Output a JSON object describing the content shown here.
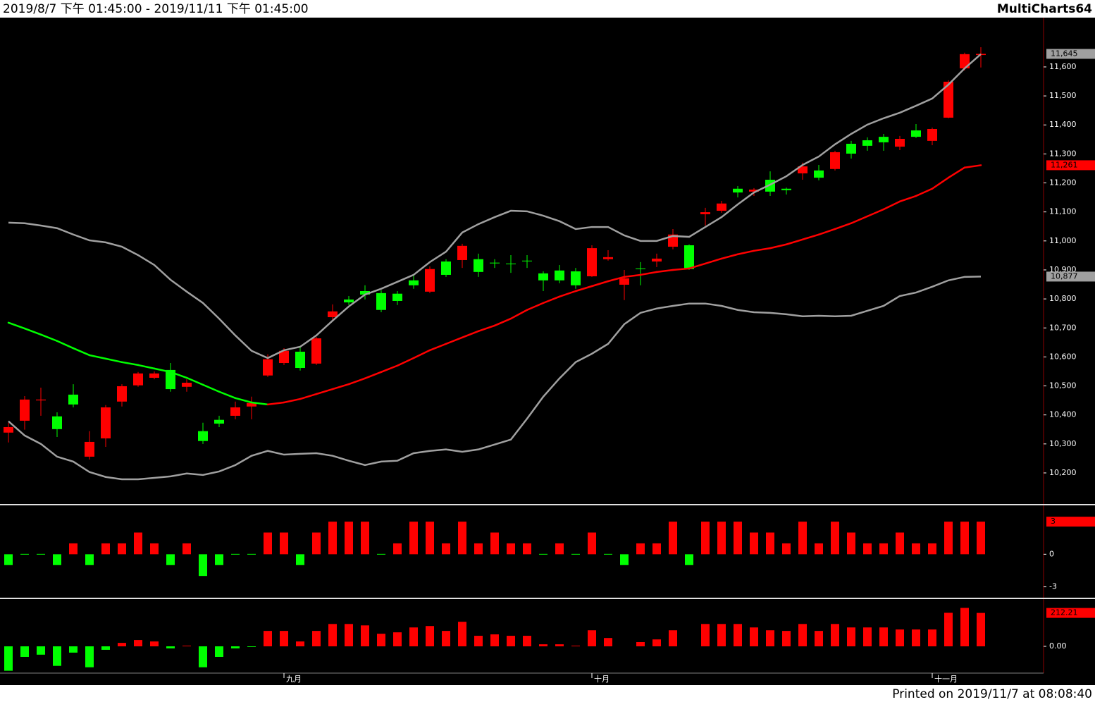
{
  "header": {
    "range": "2019/8/7 下午 01:45:00 - 2019/11/11 下午 01:45:00",
    "app": "MultiCharts64"
  },
  "footer": {
    "printed": "Printed on 2019/11/7 at 08:08:40"
  },
  "chart_data": [
    {
      "type": "candlestick",
      "up_color": "#ff0000",
      "down_color": "#00ff00",
      "categories": [
        null,
        null,
        null,
        null,
        null,
        null,
        null,
        null,
        null,
        null,
        null,
        null,
        null,
        null,
        null,
        null,
        null,
        "九月",
        null,
        null,
        null,
        null,
        null,
        null,
        null,
        null,
        null,
        null,
        null,
        null,
        null,
        null,
        null,
        null,
        null,
        null,
        "十月",
        null,
        null,
        null,
        null,
        null,
        null,
        null,
        null,
        null,
        null,
        null,
        null,
        null,
        null,
        null,
        null,
        null,
        null,
        null,
        null,
        "十一月",
        null,
        null,
        null
      ],
      "open": [
        10339,
        10380,
        10450,
        10395,
        10470,
        10256,
        10319,
        10446,
        10502,
        10528,
        10555,
        10497,
        10344,
        10383,
        10397,
        10429,
        10536,
        10579,
        10618,
        10577,
        10737,
        10798,
        10827,
        10820,
        10818,
        10864,
        10825,
        10929,
        10934,
        10937,
        10925,
        10922,
        10932,
        10888,
        10898,
        10895,
        10878,
        10937,
        10849,
        10905,
        10929,
        10980,
        10985,
        11092,
        11104,
        11180,
        11170,
        11211,
        11180,
        11233,
        11243,
        11248,
        11335,
        11347,
        11359,
        11325,
        11381,
        11345,
        11425,
        11595,
        11641
      ],
      "high": [
        10373,
        10465,
        10494,
        10409,
        10506,
        10344,
        10434,
        10506,
        10548,
        10550,
        10579,
        10523,
        10373,
        10397,
        10446,
        10463,
        10609,
        10630,
        10633,
        10669,
        10781,
        10810,
        10847,
        10830,
        10827,
        10883,
        10912,
        10937,
        10990,
        10956,
        10937,
        10951,
        10951,
        10895,
        10917,
        10907,
        10985,
        10968,
        10900,
        10927,
        10956,
        11041,
        10988,
        11114,
        11138,
        11189,
        11182,
        11240,
        11184,
        11270,
        11262,
        11311,
        11345,
        11357,
        11369,
        11362,
        11403,
        11391,
        11554,
        11649,
        11668
      ],
      "low": [
        10305,
        10349,
        10397,
        10324,
        10426,
        10246,
        10290,
        10429,
        10497,
        10523,
        10480,
        10480,
        10300,
        10358,
        10385,
        10385,
        10531,
        10572,
        10553,
        10572,
        10725,
        10779,
        10798,
        10754,
        10779,
        10835,
        10820,
        10876,
        10907,
        10876,
        10907,
        10890,
        10907,
        10827,
        10854,
        10835,
        10876,
        10932,
        10796,
        10847,
        10910,
        10971,
        10900,
        11053,
        11097,
        11150,
        11155,
        11155,
        11160,
        11211,
        11209,
        11243,
        11284,
        11311,
        11311,
        11313,
        11355,
        11330,
        11423,
        11588,
        11598
      ],
      "close": [
        10358,
        10453,
        10453,
        10351,
        10436,
        10307,
        10426,
        10499,
        10543,
        10543,
        10489,
        10511,
        10310,
        10370,
        10426,
        10441,
        10592,
        10621,
        10562,
        10664,
        10757,
        10788,
        10815,
        10762,
        10793,
        10847,
        10903,
        10883,
        10983,
        10893,
        10924,
        10921,
        10931,
        10864,
        10864,
        10847,
        10975,
        10944,
        10871,
        10904,
        10939,
        11022,
        10903,
        11099,
        11129,
        11167,
        11177,
        11170,
        11175,
        11257,
        11218,
        11306,
        11301,
        11328,
        11340,
        11352,
        11359,
        11386,
        11549,
        11644,
        11645
      ],
      "last_label": "11,645",
      "last_label_color": "#a0a0a0",
      "overlays": [
        {
          "color": "#a0a0a0",
          "values": [
            11063,
            11061,
            11053,
            11044,
            11022,
            11002,
            10995,
            10980,
            10951,
            10917,
            10866,
            10825,
            10786,
            10732,
            10674,
            10621,
            10596,
            10623,
            10635,
            10674,
            10725,
            10774,
            10815,
            10835,
            10859,
            10883,
            10927,
            10963,
            11029,
            11058,
            11082,
            11104,
            11102,
            11087,
            11068,
            11041,
            11048,
            11048,
            11019,
            11000,
            11000,
            11017,
            11014,
            11048,
            11082,
            11126,
            11167,
            11194,
            11223,
            11262,
            11291,
            11333,
            11369,
            11401,
            11423,
            11442,
            11466,
            11491,
            11539,
            11595,
            11644
          ]
        },
        {
          "up_color": "#ff0000",
          "down_color": "#00ff00",
          "values": [
            10718,
            10698,
            10677,
            10655,
            10630,
            10606,
            10594,
            10582,
            10572,
            10560,
            10548,
            10528,
            10504,
            10480,
            10458,
            10443,
            10436,
            10443,
            10455,
            10472,
            10489,
            10506,
            10526,
            10548,
            10570,
            10596,
            10623,
            10645,
            10667,
            10689,
            10708,
            10732,
            10762,
            10786,
            10808,
            10827,
            10844,
            10861,
            10876,
            10883,
            10893,
            10900,
            10905,
            10922,
            10939,
            10954,
            10966,
            10975,
            10988,
            11005,
            11022,
            11041,
            11061,
            11085,
            11109,
            11136,
            11155,
            11180,
            11218,
            11253,
            11261
          ],
          "last_label": "11,261",
          "last_label_color": "#ff0000"
        },
        {
          "color": "#a0a0a0",
          "values": [
            10378,
            10329,
            10300,
            10256,
            10239,
            10203,
            10186,
            10178,
            10178,
            10183,
            10188,
            10198,
            10193,
            10205,
            10227,
            10259,
            10276,
            10263,
            10266,
            10268,
            10259,
            10242,
            10227,
            10239,
            10242,
            10268,
            10276,
            10281,
            10273,
            10281,
            10298,
            10315,
            10387,
            10463,
            10526,
            10582,
            10611,
            10645,
            10713,
            10752,
            10767,
            10776,
            10784,
            10784,
            10776,
            10762,
            10754,
            10752,
            10747,
            10740,
            10742,
            10740,
            10742,
            10759,
            10776,
            10810,
            10822,
            10842,
            10864,
            10876,
            10877
          ],
          "last_label": "10,877",
          "last_label_color": "#a0a0a0"
        }
      ],
      "ylim": [
        10093,
        11770
      ],
      "yticks": [
        {
          "value": 10200,
          "label": "10,200"
        },
        {
          "value": 10300,
          "label": "10,300"
        },
        {
          "value": 10400,
          "label": "10,400"
        },
        {
          "value": 10500,
          "label": "10,500"
        },
        {
          "value": 10600,
          "label": "10,600"
        },
        {
          "value": 10700,
          "label": "10,700"
        },
        {
          "value": 10800,
          "label": "10,800"
        },
        {
          "value": 10900,
          "label": "10,900"
        },
        {
          "value": 11000,
          "label": "11,000"
        },
        {
          "value": 11100,
          "label": "11,100"
        },
        {
          "value": 11200,
          "label": "11,200"
        },
        {
          "value": 11300,
          "label": "11,300"
        },
        {
          "value": 11400,
          "label": "11,400"
        },
        {
          "value": 11500,
          "label": "11,500"
        },
        {
          "value": 11600,
          "label": "11,600"
        }
      ]
    },
    {
      "type": "bar",
      "up_color": "#ff0000",
      "down_color": "#00ff00",
      "zero_color": "#00ff00",
      "last_label_color": "#ff0000",
      "values": [
        -1,
        0,
        0,
        -1,
        1,
        -1,
        1,
        1,
        2,
        1,
        -1,
        1,
        -2,
        -1,
        0,
        0,
        2,
        2,
        -1,
        2,
        3,
        3,
        3,
        0,
        1,
        3,
        3,
        1,
        3,
        1,
        2,
        1,
        1,
        0,
        1,
        0,
        2,
        0,
        -1,
        1,
        1,
        3,
        -1,
        3,
        3,
        3,
        2,
        2,
        1,
        3,
        1,
        3,
        2,
        1,
        1,
        2,
        1,
        1,
        3,
        3,
        3
      ],
      "ylim": [
        -4,
        4.5
      ],
      "yticks": [
        -3,
        0
      ]
    },
    {
      "type": "bar",
      "up_color": "#ff0000",
      "down_color": "#00ff00",
      "last_label_color": "#ff0000",
      "values": [
        -155,
        -67,
        -53,
        -124,
        -40,
        -133,
        -22,
        22,
        40,
        31,
        -13,
        4,
        -133,
        -67,
        -13,
        -4,
        98,
        98,
        31,
        98,
        142,
        142,
        133,
        80,
        89,
        120,
        129,
        98,
        156,
        67,
        76,
        67,
        67,
        13,
        13,
        4,
        102,
        53,
        0,
        27,
        44,
        102,
        0,
        142,
        142,
        142,
        120,
        102,
        98,
        142,
        98,
        142,
        120,
        120,
        120,
        107,
        107,
        107,
        213,
        244,
        212.21
      ],
      "ylim": [
        -170,
        300
      ],
      "yticks": [
        {
          "value": 0,
          "label": "0.00"
        }
      ]
    }
  ]
}
